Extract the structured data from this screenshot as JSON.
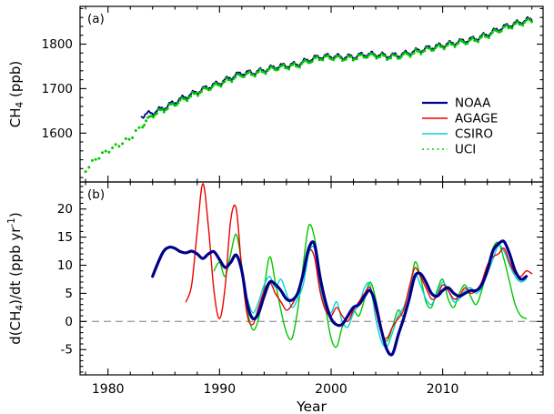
{
  "figure": {
    "xlabel": "Year",
    "xlim": [
      1977.5,
      2019.0
    ],
    "x_ticks": [
      1980,
      1990,
      2000,
      2010
    ],
    "x_minor_step": 2,
    "colors": {
      "NOAA": "#00008b",
      "AGAGE": "#ee0000",
      "CSIRO": "#00d5d5",
      "UCI": "#00c800",
      "zero_line": "#a0a0a0",
      "axis": "#000000"
    }
  },
  "chart_data": [
    {
      "id": "a",
      "type": "line",
      "panel_label": "(a)",
      "ylabel_segments": [
        {
          "t": "CH"
        },
        {
          "t": "4",
          "sub": true
        },
        {
          "t": " (ppb)"
        }
      ],
      "ylim": [
        1490,
        1885
      ],
      "yticks": [
        1600,
        1700,
        1800
      ],
      "y_minor_step": 20,
      "seasonal_amplitude": 5,
      "legend": {
        "position": "right",
        "entries": [
          {
            "label": "NOAA",
            "style": "solid"
          },
          {
            "label": "AGAGE",
            "style": "solid"
          },
          {
            "label": "CSIRO",
            "style": "solid"
          },
          {
            "label": "UCI",
            "style": "dotted"
          }
        ]
      },
      "series": [
        {
          "name": "CSIRO",
          "draw": "line",
          "width": 1.2,
          "x_start": 1984,
          "x_step": 1,
          "y": [
            1644,
            1656,
            1668,
            1680,
            1691,
            1702,
            1712,
            1723,
            1733,
            1735,
            1741,
            1748,
            1751,
            1754,
            1763,
            1771,
            1772,
            1770,
            1771,
            1776,
            1776,
            1773,
            1774,
            1780,
            1786,
            1792,
            1797,
            1802,
            1807,
            1812,
            1821,
            1833,
            1842,
            1849,
            1856
          ]
        },
        {
          "name": "AGAGE",
          "draw": "line",
          "width": 1.2,
          "x_start": 1986,
          "x_step": 1,
          "y": [
            1671,
            1683,
            1694,
            1705,
            1714,
            1726,
            1736,
            1737,
            1743,
            1750,
            1753,
            1756,
            1766,
            1773,
            1774,
            1772,
            1773,
            1778,
            1778,
            1775,
            1776,
            1782,
            1788,
            1794,
            1799,
            1804,
            1809,
            1814,
            1823,
            1835,
            1844,
            1851,
            1858
          ]
        },
        {
          "name": "NOAA",
          "draw": "line",
          "width": 1.8,
          "x_start": 1983,
          "x_step": 1,
          "y": [
            1639,
            1646,
            1657,
            1670,
            1682,
            1693,
            1704,
            1713,
            1725,
            1735,
            1736,
            1742,
            1749,
            1752,
            1755,
            1765,
            1772,
            1773,
            1771,
            1772,
            1777,
            1777,
            1774,
            1775,
            1781,
            1787,
            1793,
            1798,
            1803,
            1808,
            1813,
            1822,
            1834,
            1843,
            1850,
            1857
          ]
        },
        {
          "name": "UCI",
          "draw": "dots",
          "width": 1.5,
          "x_start": 1978,
          "x_step": 1,
          "y": [
            1518,
            1545,
            1561,
            1574,
            1588,
            1615,
            1641,
            1653,
            1666,
            1678,
            1690,
            1701,
            1710,
            1721,
            1731,
            1733,
            1739,
            1746,
            1749,
            1752,
            1762,
            1769,
            1770,
            1768,
            1769,
            1774,
            1774,
            1771,
            1772,
            1778,
            1784,
            1790,
            1795,
            1800,
            1805,
            1810,
            1819,
            1831,
            1840,
            1847,
            1854
          ]
        }
      ]
    },
    {
      "id": "b",
      "type": "line",
      "panel_label": "(b)",
      "ylabel_segments": [
        {
          "t": "d(CH"
        },
        {
          "t": "4",
          "sub": true
        },
        {
          "t": ")/dt (ppb yr"
        },
        {
          "t": "-1",
          "sup": true
        },
        {
          "t": ")"
        }
      ],
      "ylim": [
        -9.5,
        24.8
      ],
      "yticks": [
        -5,
        0,
        5,
        10,
        15,
        20
      ],
      "y_minor_step": 1,
      "zero_line": true,
      "series": [
        {
          "name": "UCI",
          "draw": "line",
          "width": 1.4,
          "x_start": 1989.5,
          "x_step": 0.5,
          "y": [
            9.0,
            10.5,
            8.0,
            12.0,
            15.5,
            10.0,
            2.0,
            -1.5,
            0.5,
            6.0,
            11.5,
            7.0,
            2.0,
            -2.0,
            -3.0,
            2.0,
            10.0,
            17.0,
            15.0,
            8.0,
            2.5,
            -3.0,
            -4.5,
            -1.0,
            1.0,
            2.0,
            1.0,
            4.0,
            7.0,
            4.0,
            -1.5,
            -3.5,
            -1.0,
            2.0,
            1.0,
            4.5,
            10.5,
            8.0,
            3.5,
            2.5,
            5.5,
            7.5,
            4.0,
            2.5,
            5.0,
            6.5,
            4.5,
            3.0,
            5.5,
            9.5,
            13.0,
            14.0,
            11.0,
            7.0,
            3.0,
            1.0,
            0.5
          ]
        },
        {
          "name": "CSIRO",
          "draw": "line",
          "width": 1.4,
          "x_start": 1992.5,
          "x_step": 0.5,
          "y": [
            4.0,
            1.5,
            3.5,
            6.5,
            8.0,
            6.0,
            7.5,
            5.0,
            2.5,
            4.0,
            6.5,
            12.0,
            13.0,
            6.5,
            2.0,
            1.5,
            3.5,
            0.0,
            -1.0,
            1.5,
            3.0,
            6.0,
            6.5,
            0.5,
            -3.5,
            -4.5,
            -2.0,
            1.0,
            2.5,
            5.5,
            8.5,
            6.5,
            4.0,
            3.0,
            5.0,
            7.0,
            5.5,
            3.5,
            4.0,
            5.5,
            6.0,
            5.0,
            6.0,
            8.5,
            11.0,
            13.5,
            12.5,
            10.0,
            8.0,
            7.0,
            7.5
          ]
        },
        {
          "name": "AGAGE",
          "draw": "line",
          "width": 1.4,
          "x_start": 1987.0,
          "x_step": 0.5,
          "y": [
            3.5,
            6.5,
            16.0,
            24.5,
            17.0,
            5.5,
            0.5,
            6.0,
            18.0,
            20.0,
            9.0,
            1.0,
            -0.5,
            2.5,
            5.5,
            7.0,
            5.0,
            3.5,
            2.0,
            3.0,
            5.0,
            8.0,
            12.5,
            11.5,
            5.5,
            2.0,
            1.0,
            2.5,
            1.0,
            0.0,
            2.0,
            3.5,
            5.0,
            6.0,
            2.0,
            -2.0,
            -3.0,
            -1.0,
            0.5,
            2.0,
            6.0,
            9.5,
            8.0,
            6.0,
            4.0,
            4.5,
            6.5,
            5.5,
            4.0,
            4.5,
            6.0,
            5.0,
            5.5,
            7.0,
            10.0,
            11.5,
            12.0,
            13.0,
            10.5,
            8.5,
            8.0,
            9.0,
            8.5
          ]
        },
        {
          "name": "NOAA",
          "draw": "line",
          "width": 3.2,
          "x_start": 1984.0,
          "x_step": 0.5,
          "y": [
            8.0,
            10.5,
            12.5,
            13.2,
            13.0,
            12.4,
            12.2,
            12.5,
            12.0,
            11.2,
            12.0,
            12.4,
            11.0,
            9.6,
            10.5,
            11.8,
            9.0,
            3.0,
            0.5,
            1.5,
            4.5,
            7.0,
            6.6,
            5.5,
            4.0,
            3.8,
            5.0,
            8.5,
            13.0,
            13.8,
            8.0,
            3.5,
            0.5,
            -0.6,
            -0.5,
            1.0,
            2.5,
            3.0,
            4.5,
            5.5,
            3.0,
            -1.5,
            -5.0,
            -5.8,
            -2.5,
            0.5,
            4.0,
            8.0,
            8.5,
            7.0,
            5.0,
            4.5,
            5.5,
            6.0,
            5.0,
            4.5,
            5.0,
            5.5,
            5.5,
            6.5,
            9.0,
            12.5,
            13.8,
            14.2,
            12.0,
            9.0,
            7.5,
            8.0
          ]
        }
      ]
    }
  ]
}
